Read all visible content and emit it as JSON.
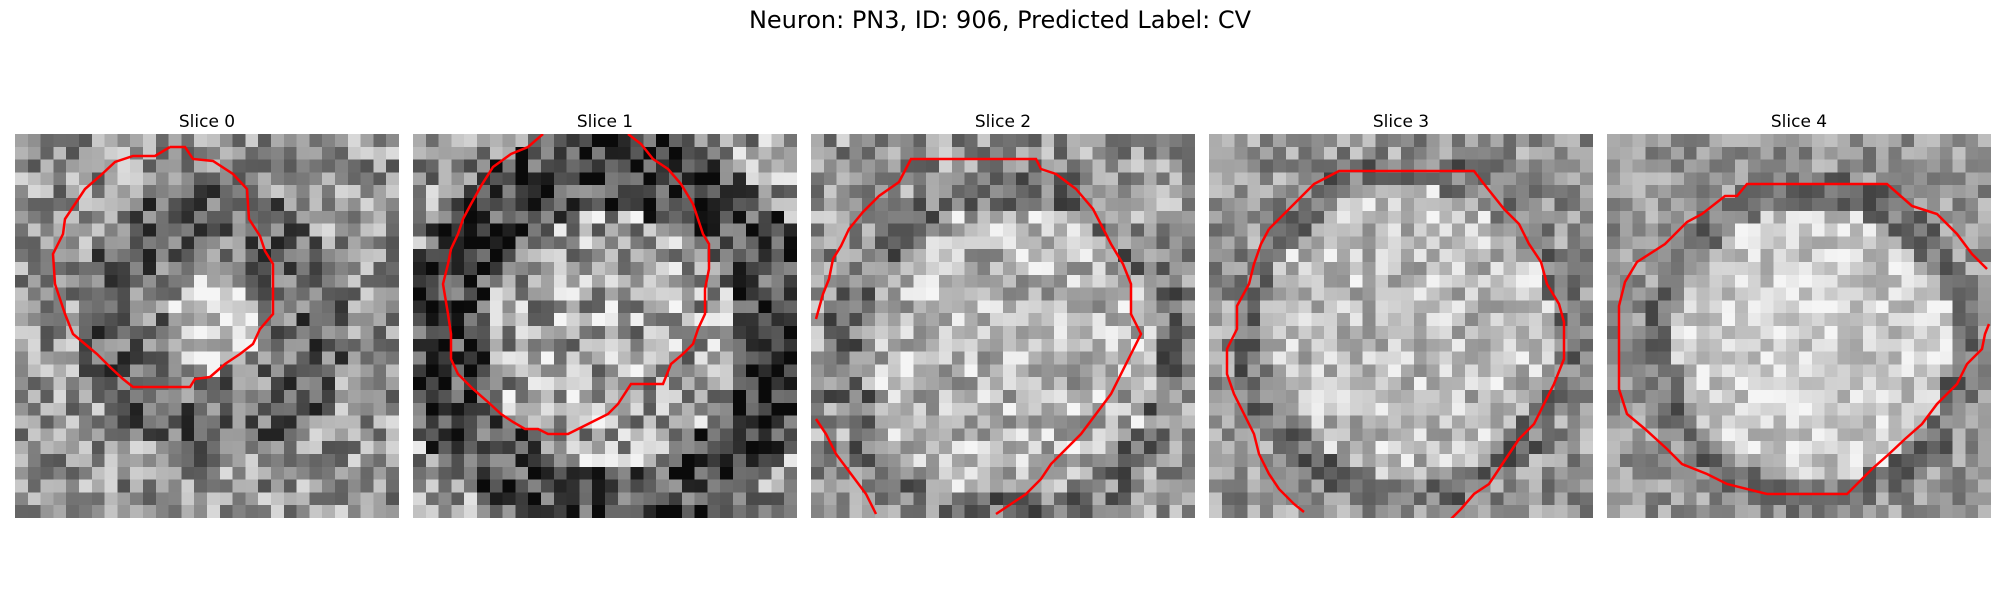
{
  "figure": {
    "title": "Neuron: PN3, ID: 906, Predicted Label: CV"
  },
  "panels": [
    {
      "title": "Slice 0"
    },
    {
      "title": "Slice 1"
    },
    {
      "title": "Slice 2"
    },
    {
      "title": "Slice 3"
    },
    {
      "title": "Slice 4"
    }
  ],
  "colors": {
    "contour": "#ff0000",
    "background": "#ffffff"
  }
}
